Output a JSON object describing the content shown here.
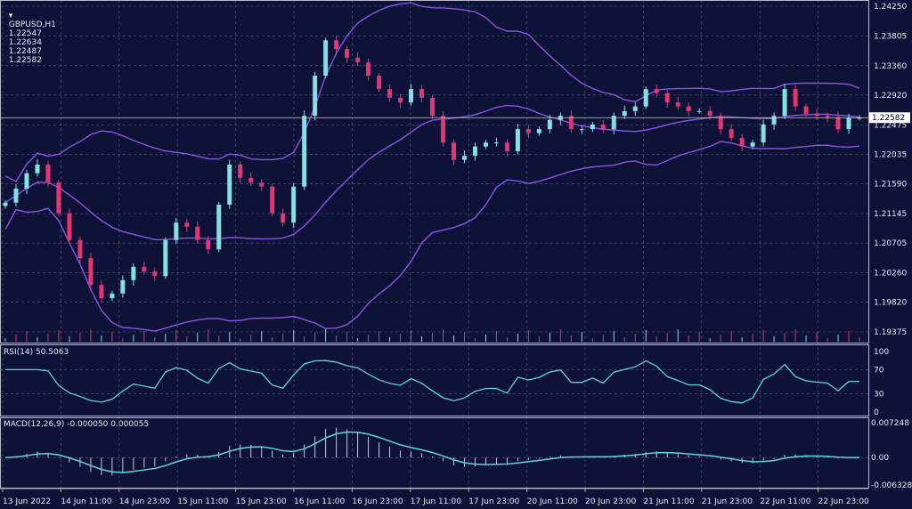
{
  "header": {
    "symbol": "GBPUSD,H1",
    "open": "1.22547",
    "high": "1.22634",
    "low": "1.22487",
    "close": "1.22582"
  },
  "rsi_label": "RSI(14) 50.5063",
  "macd_label": "MACD(12,26,9) -0.000050 0.000055",
  "current_price_label": "1.22582",
  "colors": {
    "background": "#0f1237",
    "bull": "#7fe3e3",
    "bear": "#e8336e",
    "bands": "#8a55e6",
    "indicator_line": "#5fd6d6",
    "grid": "#5a5f80"
  },
  "chart_data": [
    {
      "type": "candlestick",
      "name": "GBPUSD,H1",
      "price_ticks": [
        "1.24250",
        "1.23805",
        "1.23360",
        "1.22920",
        "1.22475",
        "1.22035",
        "1.21590",
        "1.21145",
        "1.20705",
        "1.20260",
        "1.19820",
        "1.19375"
      ],
      "ylim": [
        1.19375,
        1.2425
      ],
      "time_ticks": [
        "13 Jun 2022",
        "14 Jun 11:00",
        "14 Jun 23:00",
        "15 Jun 11:00",
        "15 Jun 23:00",
        "16 Jun 11:00",
        "16 Jun 23:00",
        "17 Jun 11:00",
        "17 Jun 23:00",
        "20 Jun 11:00",
        "20 Jun 23:00",
        "21 Jun 11:00",
        "21 Jun 23:00",
        "22 Jun 11:00",
        "22 Jun 23:00"
      ],
      "overlay": "Bollinger Bands",
      "closes": [
        1.2131,
        1.2152,
        1.2175,
        1.2188,
        1.2161,
        1.2115,
        1.2075,
        1.2048,
        1.2008,
        1.1988,
        1.1995,
        1.2015,
        1.2035,
        1.2028,
        1.2021,
        1.2075,
        1.2101,
        1.2095,
        1.2075,
        1.2061,
        1.2128,
        1.2188,
        1.2168,
        1.2161,
        1.2155,
        1.2115,
        1.2101,
        1.2155,
        1.2261,
        1.2321,
        1.2374,
        1.2361,
        1.2348,
        1.2341,
        1.2321,
        1.2301,
        1.2288,
        1.2281,
        1.2301,
        1.2288,
        1.2261,
        1.2221,
        1.2195,
        1.2201,
        1.2215,
        1.2221,
        1.2221,
        1.2208,
        1.2241,
        1.2235,
        1.2241,
        1.2255,
        1.2261,
        1.2241,
        1.2241,
        1.2248,
        1.2241,
        1.2261,
        1.2268,
        1.2275,
        1.2301,
        1.2295,
        1.2281,
        1.2275,
        1.2268,
        1.2268,
        1.2261,
        1.2241,
        1.2228,
        1.2215,
        1.2221,
        1.2248,
        1.2261,
        1.2301,
        1.2275,
        1.2264,
        1.2261,
        1.2259,
        1.2241,
        1.2258,
        1.2258
      ]
    },
    {
      "type": "line",
      "name": "RSI(14)",
      "ticks": [
        "100",
        "70",
        "30",
        "0"
      ],
      "ylim": [
        0,
        100
      ]
    },
    {
      "type": "line",
      "name": "MACD(12,26,9)",
      "ticks": [
        "0.007248",
        "0.00",
        "-0.006328"
      ],
      "ylim": [
        -0.006328,
        0.007248
      ]
    }
  ]
}
